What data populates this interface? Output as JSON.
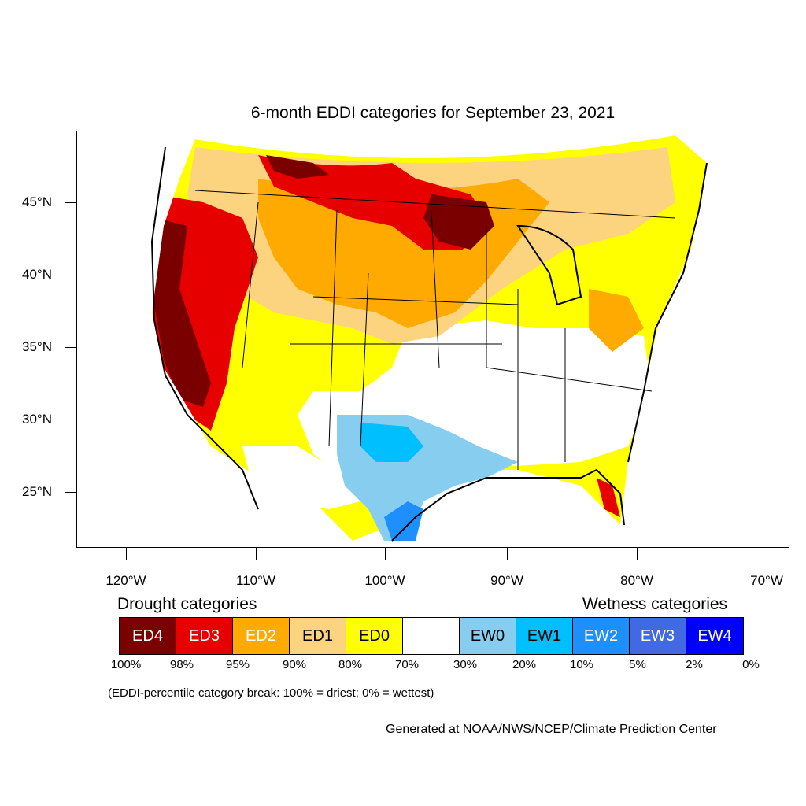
{
  "title": "6-month EDDI categories for September 23, 2021",
  "latitude_labels": [
    "45°N",
    "40°N",
    "35°N",
    "30°N",
    "25°N"
  ],
  "longitude_labels": [
    "120°W",
    "110°W",
    "100°W",
    "90°W",
    "80°W",
    "70°W"
  ],
  "legend": {
    "drought_heading": "Drought categories",
    "wetness_heading": "Wetness categories",
    "categories": [
      {
        "label": "ED4",
        "color": "#7a0000",
        "text_color": "#ffffff"
      },
      {
        "label": "ED3",
        "color": "#e60000",
        "text_color": "#ffffff"
      },
      {
        "label": "ED2",
        "color": "#ffaa00",
        "text_color": "#ffffff"
      },
      {
        "label": "ED1",
        "color": "#fcd37f",
        "text_color": "#000000"
      },
      {
        "label": "ED0",
        "color": "#ffff00",
        "text_color": "#000000"
      },
      {
        "label": "",
        "color": "#ffffff",
        "text_color": "#000000"
      },
      {
        "label": "EW0",
        "color": "#87cdef",
        "text_color": "#000000"
      },
      {
        "label": "EW1",
        "color": "#00bfff",
        "text_color": "#000000"
      },
      {
        "label": "EW2",
        "color": "#1e8fff",
        "text_color": "#ffffff"
      },
      {
        "label": "EW3",
        "color": "#4169e1",
        "text_color": "#ffffff"
      },
      {
        "label": "EW4",
        "color": "#0000ff",
        "text_color": "#ffffff"
      }
    ],
    "breaks": [
      "100%",
      "98%",
      "95%",
      "90%",
      "80%",
      "70%",
      "30%",
      "20%",
      "10%",
      "5%",
      "2%",
      "0%"
    ],
    "note": "(EDDI-percentile category break: 100% = driest; 0% = wettest)"
  },
  "credit": "Generated at NOAA/NWS/NCEP/Climate Prediction Center"
}
